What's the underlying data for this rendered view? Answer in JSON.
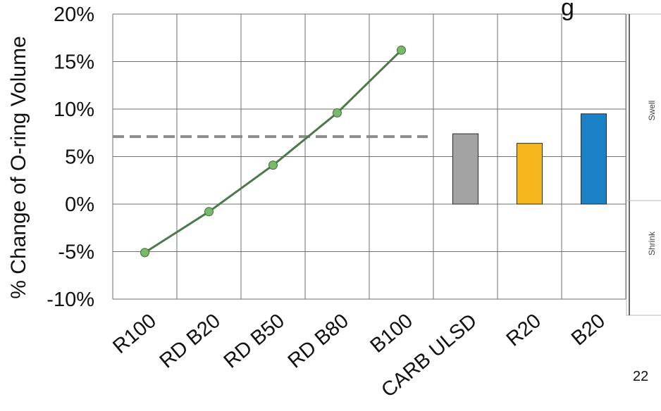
{
  "title_fragment": "g",
  "page_number": "22",
  "chart_data": {
    "type": "line",
    "ylabel": "% Change of O-ring Volume",
    "ylim": [
      -10,
      20
    ],
    "yticks": [
      "20%",
      "15%",
      "10%",
      "5%",
      "0%",
      "-5%",
      "-10%"
    ],
    "categories": [
      "R100",
      "RD B20",
      "RD B50",
      "RD B80",
      "B100",
      "CARB ULSD",
      "R20",
      "B20"
    ],
    "line_series": {
      "categories": [
        "R100",
        "RD B20",
        "RD B50",
        "RD B80",
        "B100"
      ],
      "values": [
        -5.1,
        -0.8,
        4.1,
        9.6,
        16.2
      ],
      "color": "#4a7a48",
      "marker_color": "#7ab86a"
    },
    "bar_series": {
      "categories": [
        "CARB ULSD",
        "R20",
        "B20"
      ],
      "values": [
        7.4,
        6.4,
        9.5
      ],
      "colors": [
        "#a3a3a3",
        "#f7b51e",
        "#1b82c8"
      ]
    },
    "reference_line": {
      "value": 7.1,
      "style": "dashed",
      "color": "#8c8c8c"
    },
    "side_labels": {
      "positive": "Swell",
      "negative": "Shrink"
    },
    "grid": true
  }
}
